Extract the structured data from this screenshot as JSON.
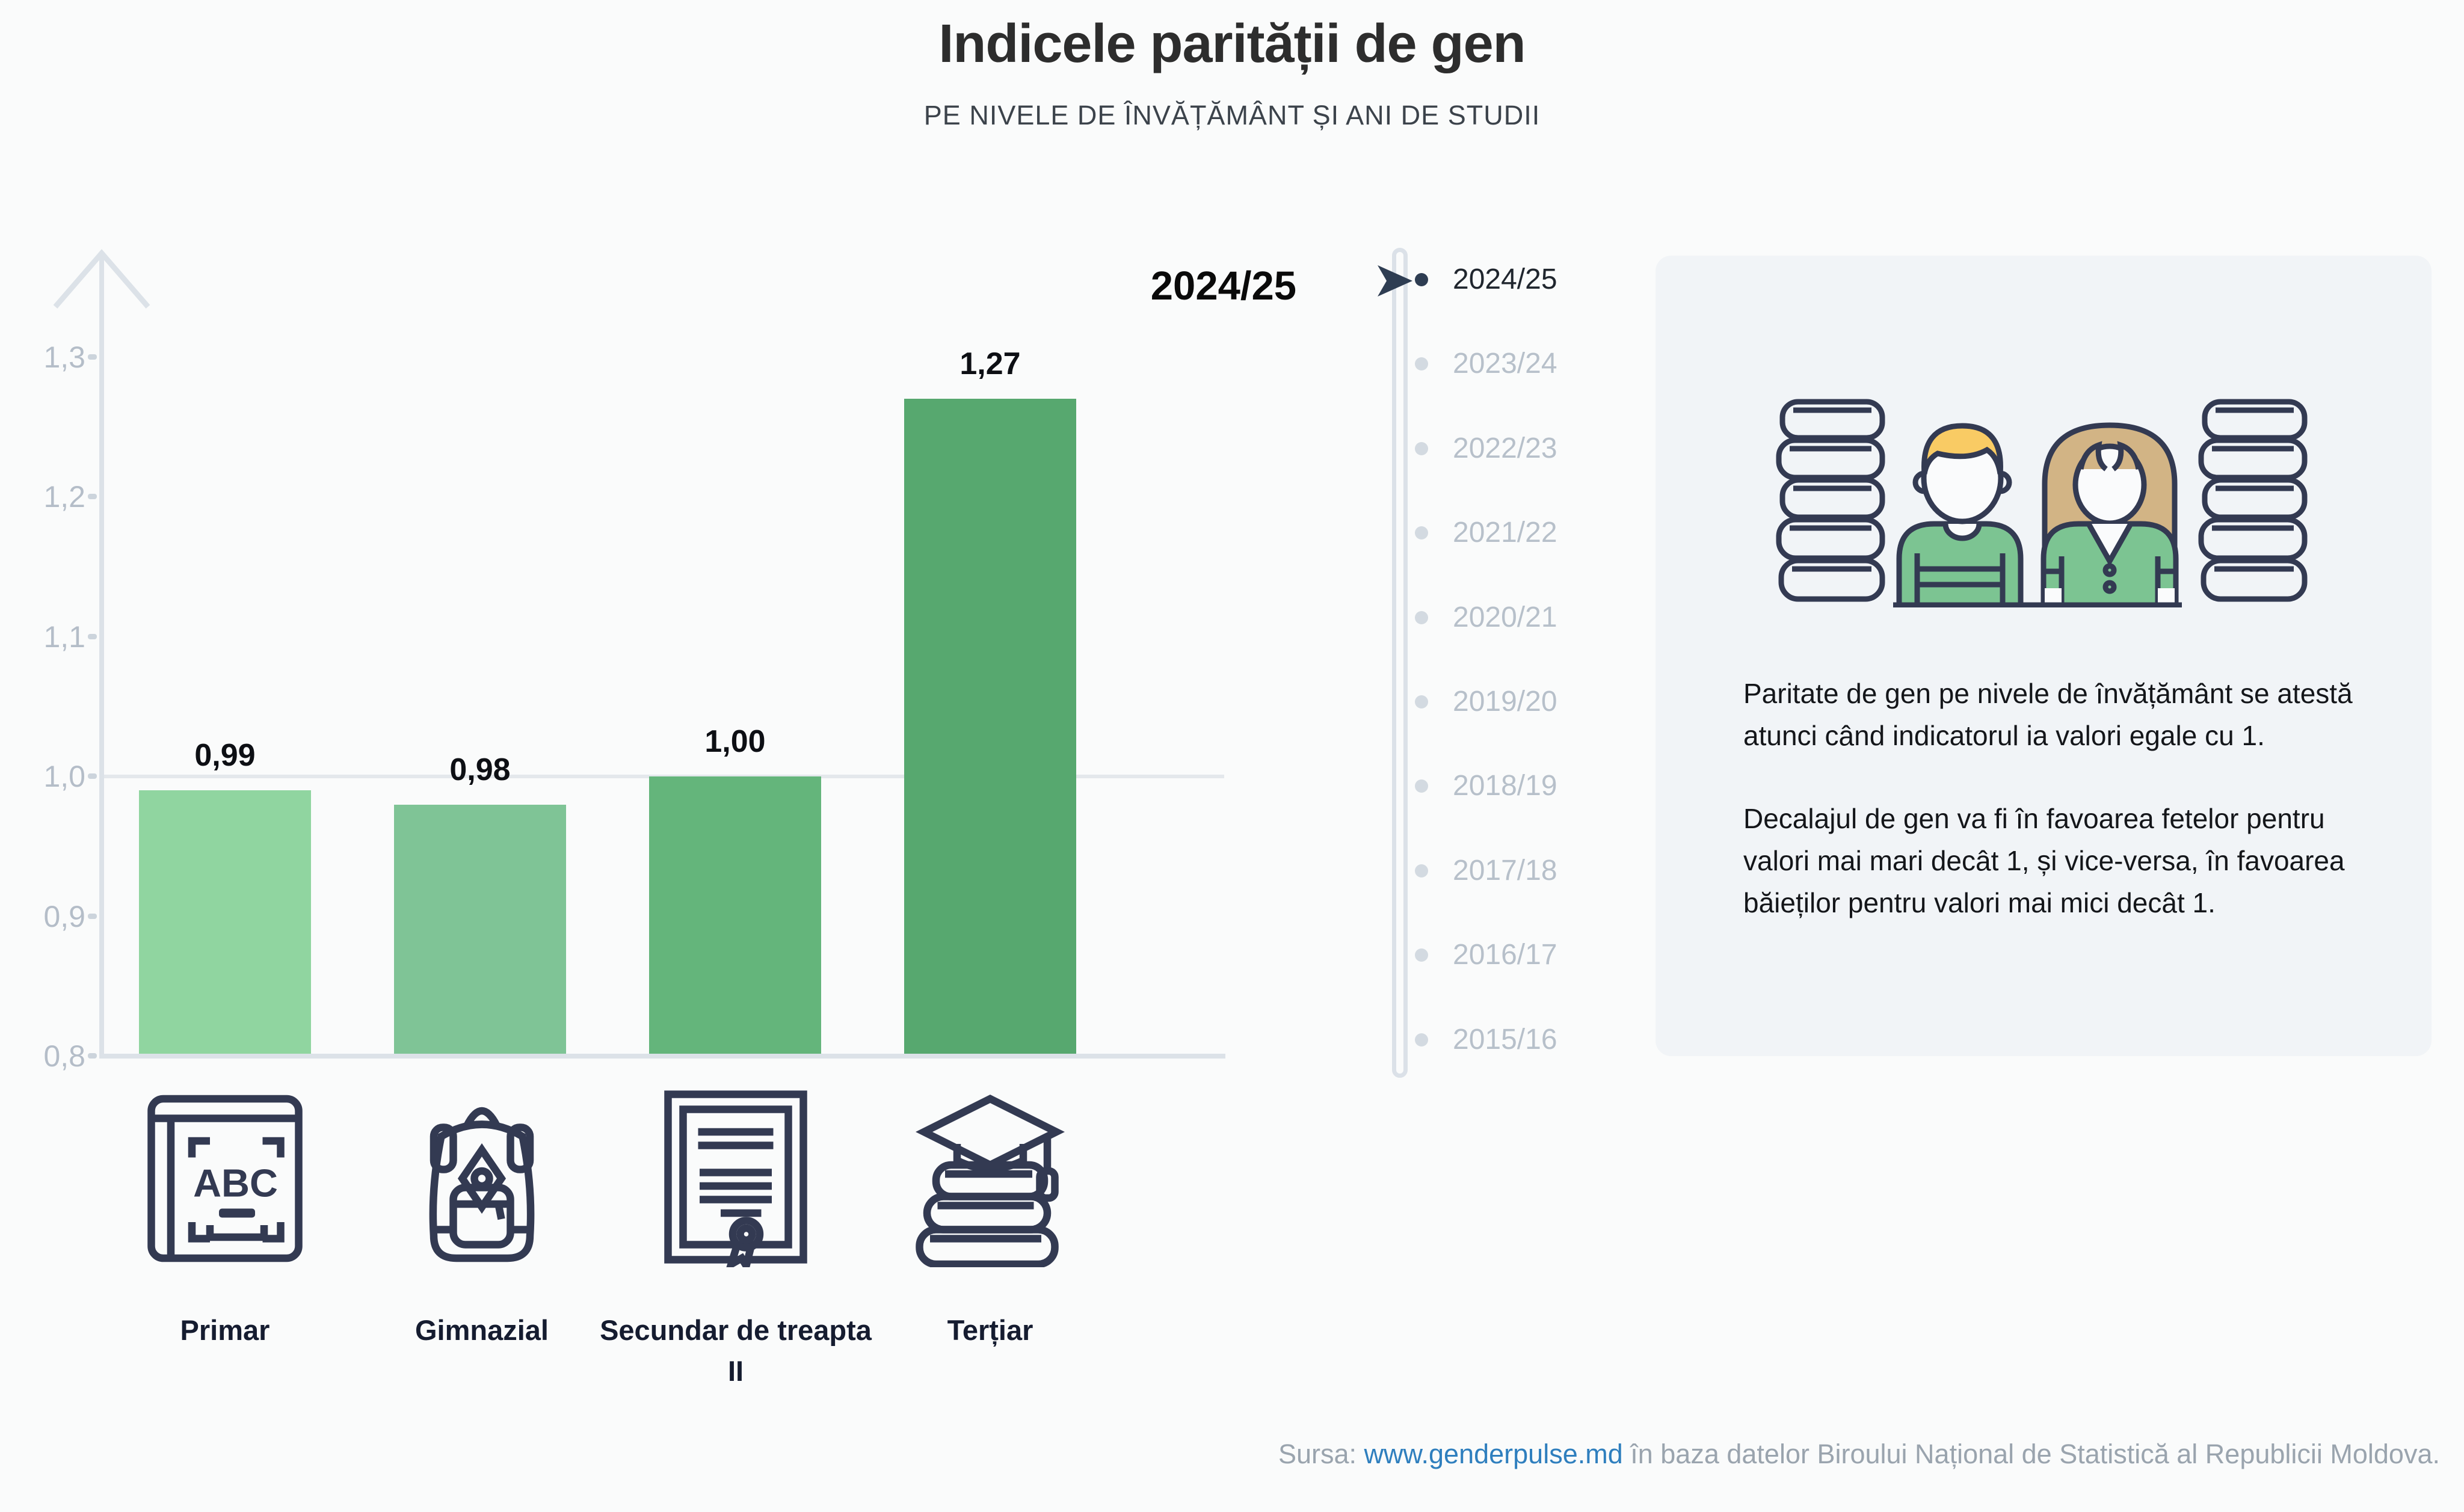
{
  "title": "Indicele parității de gen",
  "subtitle": "PE NIVELE DE ÎNVĂȚĂMÂNT ȘI ANI DE STUDII",
  "selected_year": "2024/25",
  "chart_data": {
    "type": "bar",
    "title": "Indicele parității de gen",
    "subtitle": "Pe nivele de învățământ și ani de studii",
    "categories": [
      "Primar",
      "Gimnazial",
      "Secundar de treapta II",
      "Terțiar"
    ],
    "values": [
      0.99,
      0.98,
      1.0,
      1.27
    ],
    "value_labels": [
      "0,99",
      "0,98",
      "1,00",
      "1,27"
    ],
    "bar_colors": [
      "#90d5a0",
      "#7fc496",
      "#64b57b",
      "#57a86f"
    ],
    "category_icons": [
      "abc-book-icon",
      "backpack-icon",
      "diploma-icon",
      "graduation-books-icon"
    ],
    "y_ticks": [
      "1,3",
      "1,2",
      "1,1",
      "1,0",
      "0,9",
      "0,8"
    ],
    "y_tick_values": [
      1.3,
      1.2,
      1.1,
      1.0,
      0.9,
      0.8
    ],
    "ylim": [
      0.8,
      1.35
    ],
    "gridline_at": 1.0,
    "grid": "horizontal line at 1,0 only",
    "legend": "none",
    "xlabel": "",
    "ylabel": ""
  },
  "timeline": {
    "years": [
      "2024/25",
      "2023/24",
      "2022/23",
      "2021/22",
      "2020/21",
      "2019/20",
      "2018/19",
      "2017/18",
      "2016/17",
      "2015/16"
    ],
    "selected_index": 0
  },
  "info_box": {
    "paragraph1": "Paritate de gen pe nivele de învățământ se atestă atunci când indicatorul ia valori egale cu 1.",
    "paragraph2": "Decalajul de gen va fi în favoarea fetelor pentru valori mai mari decât 1, și vice-versa, în favoarea băieților pentru valori mai mici decât 1."
  },
  "footer": {
    "prefix": "Sursa: ",
    "link": "www.genderpulse.md",
    "suffix": " în baza datelor Biroului Național de Statistică al Republicii Moldova."
  },
  "colors": {
    "background": "#fafbfb",
    "info_box_bg": "#f1f4f7",
    "axis": "#dce2e8",
    "tick_label": "#b4bdc8",
    "inactive_year": "#b7c0ca",
    "active_year": "#20262e",
    "icon_outline": "#333a52",
    "boy_hair": "#f9cb64",
    "girl_hair": "#d2b485",
    "shirt_green": "#7cc492",
    "link_blue": "#2f7fbe"
  }
}
